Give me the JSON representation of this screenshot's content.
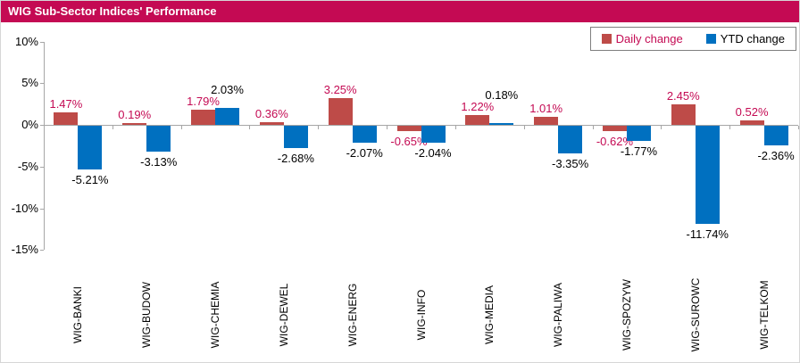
{
  "header": {
    "title": "WIG Sub-Sector Indices' Performance"
  },
  "colors": {
    "header_bg": "#C40A53",
    "accent_text": "#C40A53",
    "daily_bar": "#BE4B48",
    "ytd_bar": "#0070C0",
    "axis": "#A6A6A6",
    "text": "#000000",
    "legend_border": "#7F7F7F"
  },
  "legend": {
    "items": [
      {
        "label": "Daily change",
        "color": "#BE4B48",
        "text_color": "#C40A53"
      },
      {
        "label": "YTD change",
        "color": "#0070C0",
        "text_color": "#000000"
      }
    ]
  },
  "chart_data": {
    "type": "bar",
    "title": "WIG Sub-Sector Indices' Performance",
    "categories": [
      "WIG-BANKI",
      "WIG-BUDOW",
      "WIG-CHEMIA",
      "WIG-DEWEL",
      "WIG-ENERG",
      "WIG-INFO",
      "WIG-MEDIA",
      "WIG-PALIWA",
      "WIG-SPOZYW",
      "WIG-SUROWC",
      "WIG-TELKOM"
    ],
    "series": [
      {
        "name": "Daily change",
        "color": "#BE4B48",
        "label_color": "#C40A53",
        "values": [
          1.47,
          0.19,
          1.79,
          0.36,
          3.25,
          -0.65,
          1.22,
          1.01,
          -0.62,
          2.45,
          0.52
        ]
      },
      {
        "name": "YTD change",
        "color": "#0070C0",
        "label_color": "#000000",
        "values": [
          -5.21,
          -3.13,
          2.03,
          -2.68,
          -2.07,
          -2.04,
          0.18,
          -3.35,
          -1.77,
          -11.74,
          -2.36
        ]
      }
    ],
    "value_suffix": "%",
    "ylim": [
      -15,
      10
    ],
    "ytick_labels": [
      "10%",
      "5%",
      "0%",
      "-5%",
      "-10%",
      "-15%"
    ],
    "ytick_values": [
      10,
      5,
      0,
      -5,
      -10,
      -15
    ],
    "grid": false,
    "legend_position": "top-right",
    "data_labels": true
  }
}
